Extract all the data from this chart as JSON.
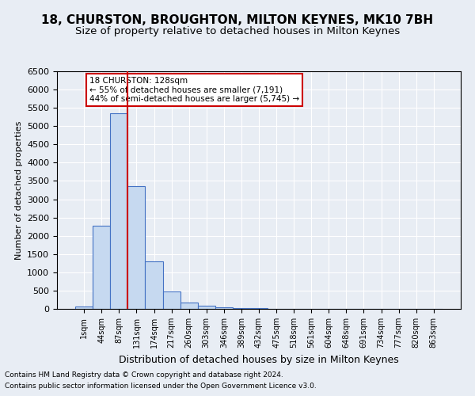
{
  "title": "18, CHURSTON, BROUGHTON, MILTON KEYNES, MK10 7BH",
  "subtitle": "Size of property relative to detached houses in Milton Keynes",
  "xlabel": "Distribution of detached houses by size in Milton Keynes",
  "ylabel": "Number of detached properties",
  "footer_line1": "Contains HM Land Registry data © Crown copyright and database right 2024.",
  "footer_line2": "Contains public sector information licensed under the Open Government Licence v3.0.",
  "bin_labels": [
    "1sqm",
    "44sqm",
    "87sqm",
    "131sqm",
    "174sqm",
    "217sqm",
    "260sqm",
    "303sqm",
    "346sqm",
    "389sqm",
    "432sqm",
    "475sqm",
    "518sqm",
    "561sqm",
    "604sqm",
    "648sqm",
    "691sqm",
    "734sqm",
    "777sqm",
    "820sqm",
    "863sqm"
  ],
  "bar_values": [
    70,
    2270,
    5360,
    3360,
    1290,
    480,
    165,
    80,
    50,
    30,
    15,
    10,
    5,
    3,
    2,
    1,
    1,
    0,
    0,
    0,
    0
  ],
  "bar_color": "#c6d9f0",
  "bar_edge_color": "#4472c4",
  "vline_color": "#cc0000",
  "annotation_text": "18 CHURSTON: 128sqm\n← 55% of detached houses are smaller (7,191)\n44% of semi-detached houses are larger (5,745) →",
  "annotation_box_color": "#ffffff",
  "annotation_box_edge": "#cc0000",
  "ylim": [
    0,
    6500
  ],
  "yticks": [
    0,
    500,
    1000,
    1500,
    2000,
    2500,
    3000,
    3500,
    4000,
    4500,
    5000,
    5500,
    6000,
    6500
  ],
  "background_color": "#e8edf4",
  "plot_background": "#e8edf4",
  "title_fontsize": 11,
  "subtitle_fontsize": 9.5,
  "vline_pos": 2.5
}
